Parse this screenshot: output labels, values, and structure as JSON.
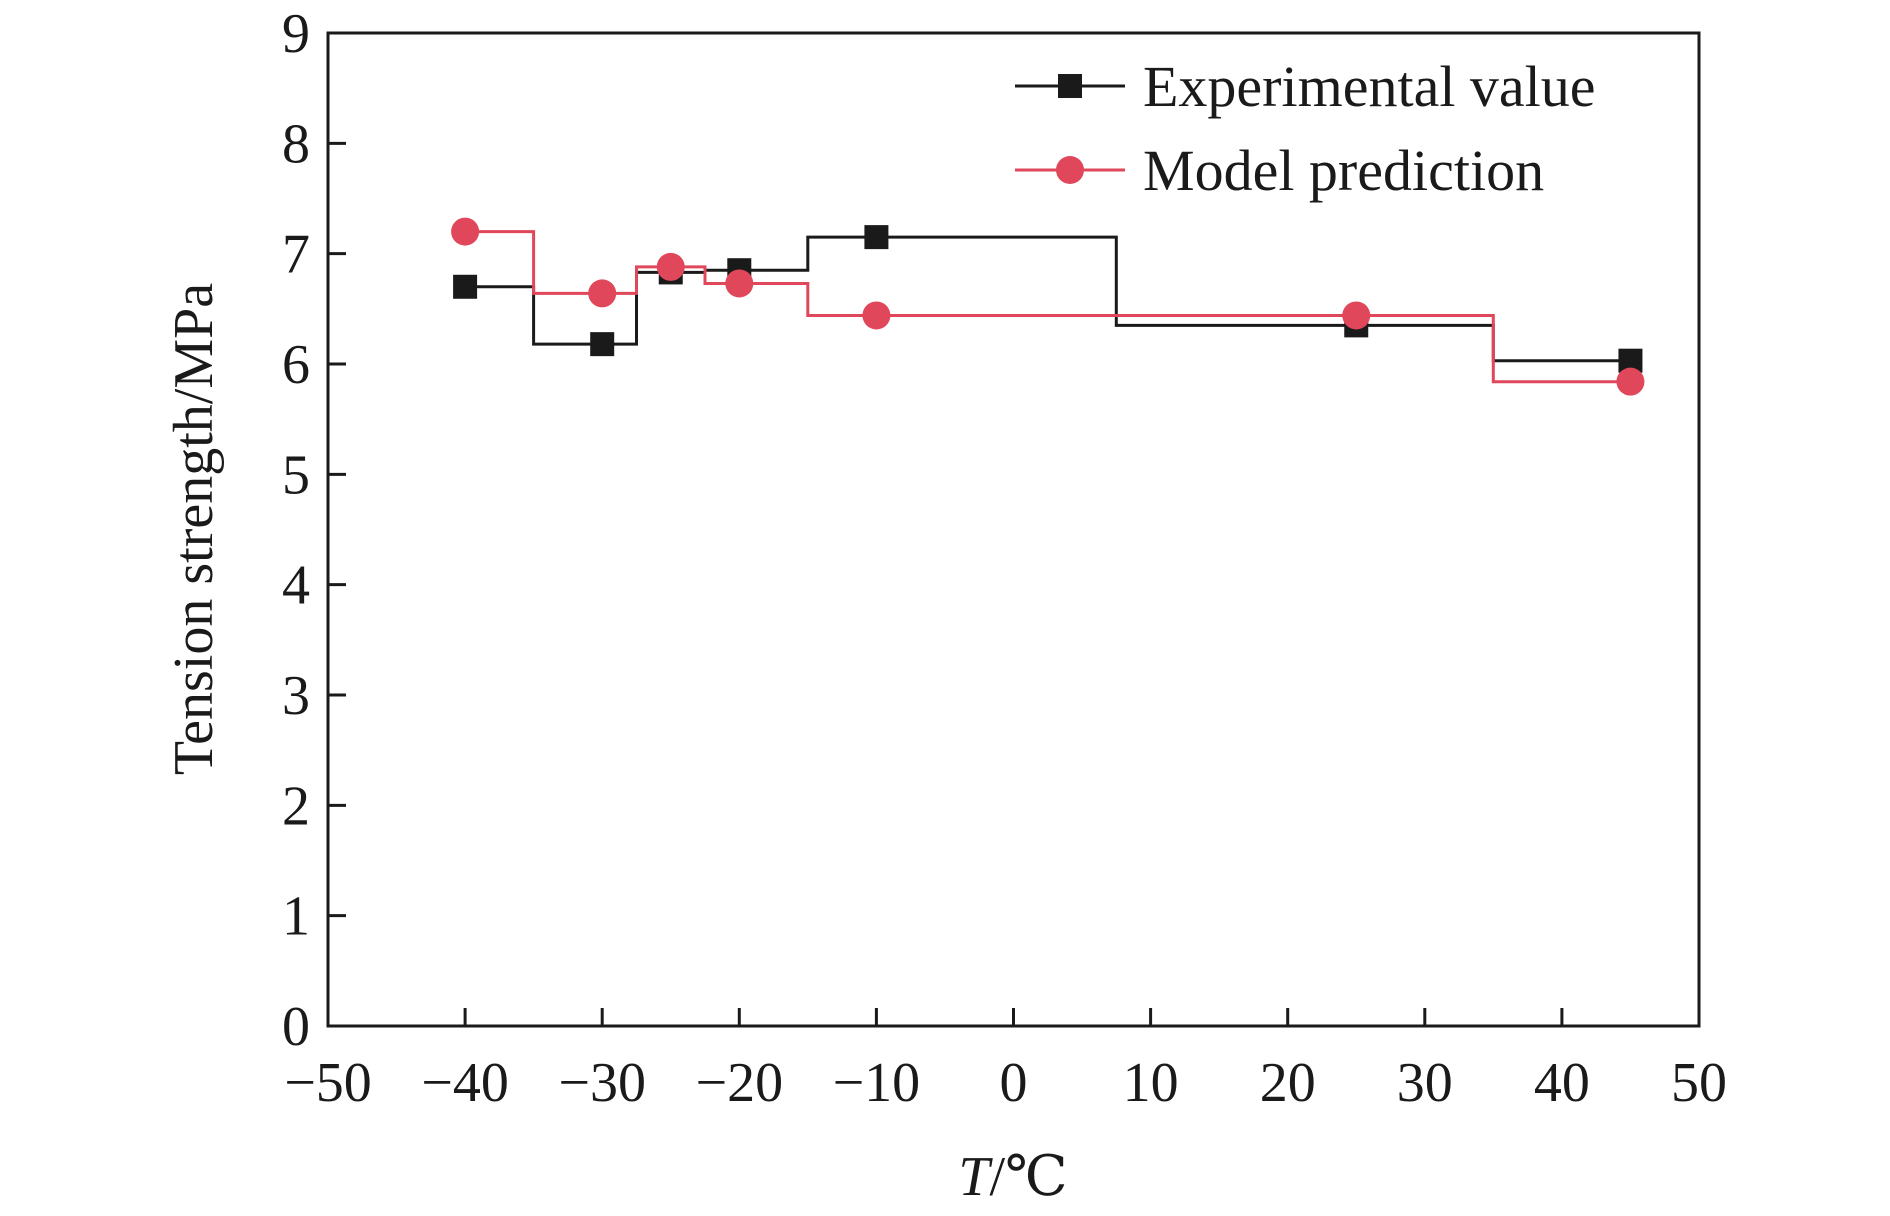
{
  "chart_data": {
    "type": "line",
    "step": "mid",
    "xlabel_var": "T",
    "xlabel_unit": "/℃",
    "ylabel": "Tension strength/MPa",
    "xlim": [
      -50,
      50
    ],
    "ylim": [
      0,
      9
    ],
    "xticks": [
      -50,
      -40,
      -30,
      -20,
      -10,
      0,
      10,
      20,
      30,
      40,
      50
    ],
    "xtick_labels": [
      "−50",
      "−40",
      "−30",
      "−20",
      "−10",
      "0",
      "10",
      "20",
      "30",
      "40",
      "50"
    ],
    "yticks": [
      0,
      1,
      2,
      3,
      4,
      5,
      6,
      7,
      8,
      9
    ],
    "ytick_labels": [
      "0",
      "1",
      "2",
      "3",
      "4",
      "5",
      "6",
      "7",
      "8",
      "9"
    ],
    "x": [
      -40,
      -30,
      -25,
      -20,
      -10,
      25,
      45
    ],
    "series": [
      {
        "name": "Experimental value",
        "marker": "square",
        "color": "#1a1a1a",
        "values": [
          6.7,
          6.18,
          6.83,
          6.85,
          7.15,
          6.35,
          6.03
        ]
      },
      {
        "name": "Model prediction",
        "marker": "circle",
        "color": "#e0475a",
        "values": [
          7.2,
          6.64,
          6.88,
          6.73,
          6.44,
          6.44,
          5.84
        ]
      }
    ],
    "legend_position": "top-right",
    "grid": false
  }
}
